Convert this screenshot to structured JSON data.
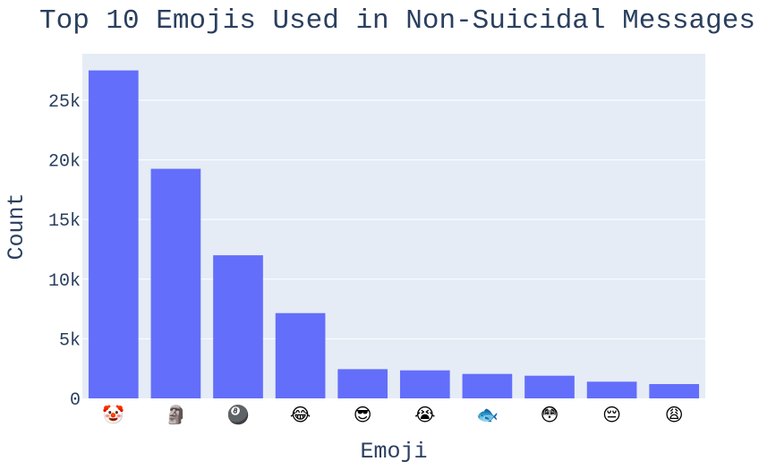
{
  "chart_data": {
    "type": "bar",
    "title": "Top 10 Emojis Used in Non-Suicidal Messages",
    "xlabel": "Emoji",
    "ylabel": "Count",
    "categories": [
      "🤡",
      "🗿",
      "🎱",
      "😂",
      "😎",
      "😭",
      "🐟",
      "😳",
      "😔",
      "😩"
    ],
    "values": [
      27500,
      19250,
      12000,
      7150,
      2450,
      2350,
      2050,
      1900,
      1400,
      1200
    ],
    "ylim": [
      0,
      28900
    ],
    "yticks": [
      0,
      5000,
      10000,
      15000,
      20000,
      25000
    ],
    "ytick_labels": [
      "0",
      "5k",
      "10k",
      "15k",
      "20k",
      "25k"
    ],
    "grid": true,
    "colors": {
      "bar": "#636efa",
      "plot_bg": "#e5ecf6",
      "grid": "#ffffff",
      "text": "#2a3f5f"
    }
  }
}
